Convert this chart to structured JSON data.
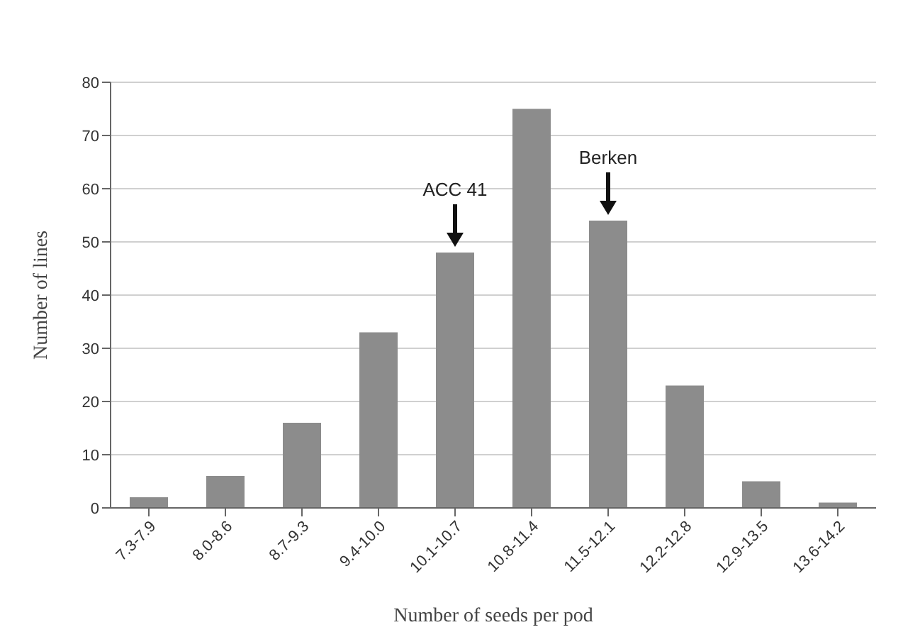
{
  "chart_data": {
    "type": "bar",
    "xlabel": "Number of seeds per pod",
    "ylabel": "Number of lines",
    "categories": [
      "7.3-7.9",
      "8.0-8.6",
      "8.7-9.3",
      "9.4-10.0",
      "10.1-10.7",
      "10.8-11.4",
      "11.5-12.1",
      "12.2-12.8",
      "12.9-13.5",
      "13.6-14.2"
    ],
    "values": [
      2,
      6,
      16,
      33,
      48,
      75,
      54,
      23,
      5,
      1
    ],
    "color": "#8c8c8c",
    "ylim": [
      0,
      80
    ],
    "yticks": [
      0,
      10,
      20,
      30,
      40,
      50,
      60,
      70,
      80
    ],
    "grid": "y",
    "annotations": [
      {
        "text": "ACC 41",
        "x": "10.1-10.7",
        "y": 48
      },
      {
        "text": "Berken",
        "x": "11.5-12.1",
        "y": 54
      }
    ]
  }
}
